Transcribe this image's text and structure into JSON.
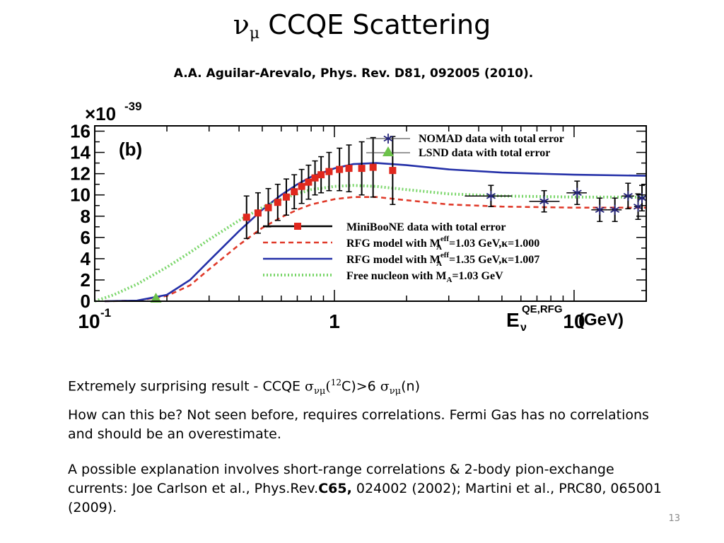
{
  "slide": {
    "title_nu": "ν",
    "title_mu": "μ",
    "title_text": " CCQE Scattering",
    "citation": "A.A. Aguilar-Arevalo, Phys. Rev. D81, 092005 (2010).",
    "page_number": "13"
  },
  "bullets": {
    "b1_prefix": "Extremely surprising result - CCQE ",
    "b1_sigma": "σ",
    "b1_sub": "νμ",
    "b1_paren": "(",
    "b1_sup12": "12",
    "b1_mid": "C)>6 ",
    "b1_sigma2": "σ",
    "b1_sub2": "νμ",
    "b1_end": "(n)",
    "b2": "How can this be? Not seen before, requires correlations. Fermi Gas has no correlations and should be an overestimate.",
    "b3_prefix": "A possible explanation involves short-range correlations & 2-body pion-exchange currents: Joe Carlson et al., Phys.Rev.",
    "b3_bold": "C65,",
    "b3_suffix": " 024002 (2002); Martini et al., PRC80, 065001 (2009)."
  },
  "chart_data": {
    "type": "line",
    "panel_label": "(b)",
    "y_scale_label": "×10",
    "y_scale_exp": "-39",
    "x_scale": "log",
    "xlim": [
      0.1,
      20
    ],
    "ylim": [
      0,
      16.5
    ],
    "xticks": [
      {
        "value": 0.1,
        "base": "10",
        "exp": "-1"
      },
      {
        "value": 1,
        "base": "1",
        "exp": ""
      },
      {
        "value": 10,
        "base": "10",
        "exp": ""
      }
    ],
    "yticks": [
      0,
      2,
      4,
      6,
      8,
      10,
      12,
      14,
      16
    ],
    "xlabel_main": "E",
    "xlabel_sub": "ν",
    "xlabel_sup": "QE,RFG",
    "xlabel_unit": " (GeV)",
    "legend_top": [
      {
        "label": "NOMAD data with total error",
        "marker": "asterisk",
        "color": "#24247a"
      },
      {
        "label": "LSND data with total error",
        "marker": "triangle",
        "color": "#6cc24a"
      }
    ],
    "legend_bottom": [
      {
        "pre": "MiniBooNE data with total error",
        "color": "#e0281e",
        "style": "marker-line"
      },
      {
        "pre": "RFG model with M",
        "sup": "eff",
        "sub": "A",
        "post": "=1.03 GeV,κ=1.000",
        "color": "#e03a2a",
        "style": "dashed"
      },
      {
        "pre": "RFG model with M",
        "sup": "eff",
        "sub": "A",
        "post": "=1.35 GeV,κ=1.007",
        "color": "#2430a8",
        "style": "solid"
      },
      {
        "pre": "Free nucleon with M",
        "sup": "",
        "sub": "A",
        "post": "=1.03 GeV",
        "color": "#7ad66a",
        "style": "dotted"
      }
    ],
    "series": [
      {
        "name": "MiniBooNE data with total error",
        "kind": "points",
        "color": "#e0281e",
        "points": [
          {
            "x": 0.43,
            "y": 7.9,
            "yerr": 2.0
          },
          {
            "x": 0.48,
            "y": 8.3,
            "yerr": 1.9
          },
          {
            "x": 0.53,
            "y": 8.8,
            "yerr": 1.8
          },
          {
            "x": 0.58,
            "y": 9.3,
            "yerr": 1.7
          },
          {
            "x": 0.63,
            "y": 9.8,
            "yerr": 1.7
          },
          {
            "x": 0.68,
            "y": 10.3,
            "yerr": 1.6
          },
          {
            "x": 0.73,
            "y": 10.8,
            "yerr": 1.6
          },
          {
            "x": 0.78,
            "y": 11.2,
            "yerr": 1.6
          },
          {
            "x": 0.83,
            "y": 11.6,
            "yerr": 1.6
          },
          {
            "x": 0.88,
            "y": 11.9,
            "yerr": 1.7
          },
          {
            "x": 0.95,
            "y": 12.2,
            "yerr": 1.8
          },
          {
            "x": 1.05,
            "y": 12.4,
            "yerr": 2.0
          },
          {
            "x": 1.15,
            "y": 12.5,
            "yerr": 2.2
          },
          {
            "x": 1.3,
            "y": 12.5,
            "yerr": 2.5
          },
          {
            "x": 1.45,
            "y": 12.6,
            "yerr": 2.8
          },
          {
            "x": 1.75,
            "y": 12.3,
            "yerr": 3.2
          }
        ]
      },
      {
        "name": "NOMAD data with total error",
        "kind": "points",
        "color": "#24247a",
        "points": [
          {
            "x": 4.5,
            "y": 9.9,
            "yerr": 1.0,
            "xlo": 3.5,
            "xhi": 5.5
          },
          {
            "x": 7.5,
            "y": 9.4,
            "yerr": 1.0,
            "xlo": 6.5,
            "xhi": 8.7
          },
          {
            "x": 10.3,
            "y": 10.2,
            "yerr": 1.1,
            "xlo": 9.3,
            "xhi": 11.3
          },
          {
            "x": 12.8,
            "y": 8.6,
            "yerr": 1.1,
            "xlo": 11.8,
            "xhi": 13.8
          },
          {
            "x": 14.8,
            "y": 8.6,
            "yerr": 1.1,
            "xlo": 13.8,
            "xhi": 15.8
          },
          {
            "x": 16.8,
            "y": 9.9,
            "yerr": 1.2,
            "xlo": 15.8,
            "xhi": 17.8
          },
          {
            "x": 18.5,
            "y": 8.9,
            "yerr": 1.2,
            "xlo": 17.8,
            "xhi": 19.0
          },
          {
            "x": 19.2,
            "y": 9.7,
            "yerr": 1.2,
            "xlo": 18.7,
            "xhi": 19.7
          }
        ]
      },
      {
        "name": "LSND data with total error",
        "kind": "points",
        "color": "#6cc24a",
        "points": [
          {
            "x": 0.18,
            "y": 0.2
          }
        ]
      },
      {
        "name": "RFG model with M_A^eff=1.03 GeV,κ=1.000",
        "kind": "line",
        "style": "dashed",
        "color": "#e03a2a",
        "points": [
          [
            0.11,
            0
          ],
          [
            0.15,
            0.05
          ],
          [
            0.2,
            0.5
          ],
          [
            0.25,
            1.5
          ],
          [
            0.3,
            3.0
          ],
          [
            0.4,
            5.3
          ],
          [
            0.5,
            6.9
          ],
          [
            0.6,
            7.9
          ],
          [
            0.7,
            8.6
          ],
          [
            0.8,
            9.1
          ],
          [
            1,
            9.6
          ],
          [
            1.2,
            9.8
          ],
          [
            1.5,
            9.8
          ],
          [
            2,
            9.5
          ],
          [
            3,
            9.1
          ],
          [
            5,
            8.9
          ],
          [
            10,
            8.8
          ],
          [
            20,
            8.8
          ]
        ]
      },
      {
        "name": "RFG model with M_A^eff=1.35 GeV,κ=1.007",
        "kind": "line",
        "style": "solid",
        "color": "#2430a8",
        "points": [
          [
            0.11,
            0
          ],
          [
            0.15,
            0.05
          ],
          [
            0.2,
            0.6
          ],
          [
            0.25,
            2.0
          ],
          [
            0.3,
            3.8
          ],
          [
            0.4,
            6.6
          ],
          [
            0.5,
            8.6
          ],
          [
            0.6,
            10.0
          ],
          [
            0.7,
            11.0
          ],
          [
            0.8,
            11.7
          ],
          [
            1,
            12.5
          ],
          [
            1.2,
            12.9
          ],
          [
            1.5,
            13.0
          ],
          [
            2,
            12.8
          ],
          [
            3,
            12.4
          ],
          [
            5,
            12.1
          ],
          [
            10,
            11.9
          ],
          [
            20,
            11.8
          ]
        ]
      },
      {
        "name": "Free nucleon with M_A=1.03 GeV",
        "kind": "line",
        "style": "dotted",
        "color": "#7ad66a",
        "points": [
          [
            0.1,
            0
          ],
          [
            0.12,
            0.6
          ],
          [
            0.15,
            1.6
          ],
          [
            0.2,
            3.2
          ],
          [
            0.25,
            4.6
          ],
          [
            0.3,
            5.8
          ],
          [
            0.4,
            7.6
          ],
          [
            0.5,
            8.8
          ],
          [
            0.6,
            9.6
          ],
          [
            0.7,
            10.1
          ],
          [
            0.8,
            10.5
          ],
          [
            1,
            10.8
          ],
          [
            1.2,
            10.9
          ],
          [
            1.5,
            10.8
          ],
          [
            2,
            10.5
          ],
          [
            3,
            10.1
          ],
          [
            5,
            9.9
          ],
          [
            10,
            9.8
          ],
          [
            20,
            9.8
          ]
        ]
      }
    ]
  }
}
